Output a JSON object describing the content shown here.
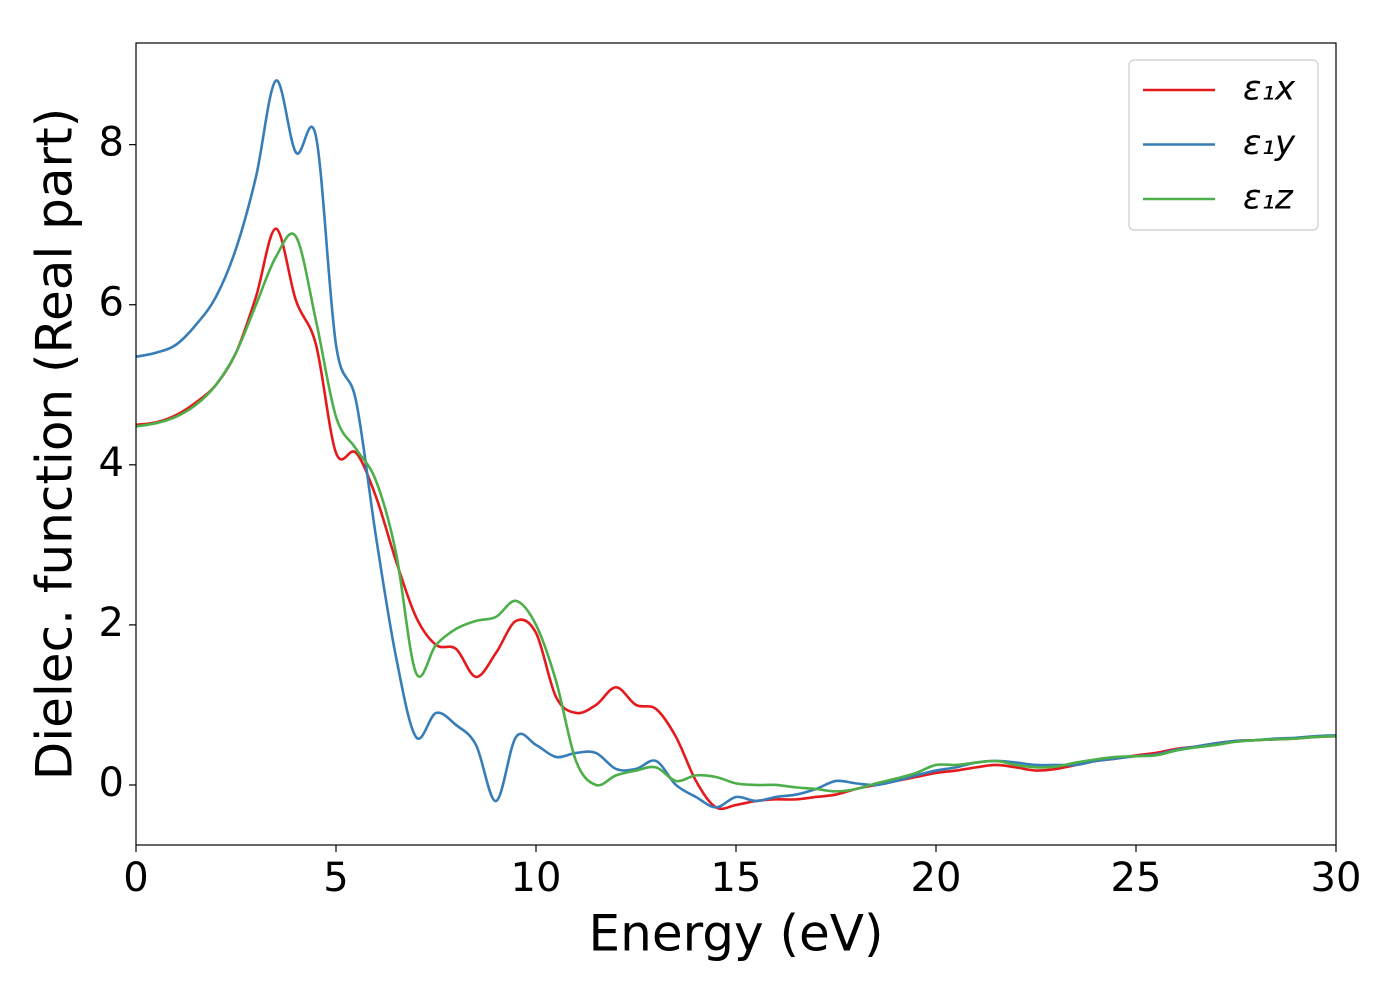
{
  "chart_data": {
    "type": "line",
    "xlabel": "Energy (eV)",
    "ylabel": "Dielec. function (Real part)",
    "x": [
      0,
      0.5,
      1,
      1.5,
      2,
      2.5,
      3,
      3.5,
      4,
      4.5,
      5,
      5.5,
      6,
      6.5,
      7,
      7.5,
      8,
      8.5,
      9,
      9.5,
      10,
      10.5,
      11,
      11.5,
      12,
      12.5,
      13,
      13.5,
      14,
      14.5,
      15,
      15.5,
      16,
      16.5,
      17,
      17.5,
      18,
      18.5,
      19,
      19.5,
      20,
      20.5,
      21,
      21.5,
      22,
      22.5,
      23,
      23.5,
      24,
      24.5,
      25,
      25.5,
      26,
      26.5,
      27,
      27.5,
      28,
      28.5,
      29,
      29.5,
      30
    ],
    "series": [
      {
        "name": "ε₁x",
        "color": "#e41a1c",
        "values": [
          4.5,
          4.53,
          4.62,
          4.78,
          5.0,
          5.4,
          6.1,
          6.95,
          6.05,
          5.5,
          4.15,
          4.15,
          3.6,
          2.8,
          2.1,
          1.75,
          1.7,
          1.35,
          1.65,
          2.05,
          1.9,
          1.1,
          0.9,
          1.0,
          1.22,
          1.0,
          0.95,
          0.6,
          0.05,
          -0.28,
          -0.25,
          -0.2,
          -0.18,
          -0.18,
          -0.15,
          -0.12,
          -0.05,
          0.0,
          0.05,
          0.1,
          0.15,
          0.18,
          0.22,
          0.25,
          0.22,
          0.18,
          0.2,
          0.25,
          0.3,
          0.33,
          0.37,
          0.4,
          0.45,
          0.48,
          0.52,
          0.55,
          0.56,
          0.57,
          0.58,
          0.6,
          0.61
        ]
      },
      {
        "name": "ε₁y",
        "color": "#377eb8",
        "values": [
          5.35,
          5.4,
          5.5,
          5.75,
          6.1,
          6.7,
          7.6,
          8.8,
          7.9,
          8.1,
          5.5,
          4.8,
          3.1,
          1.6,
          0.6,
          0.9,
          0.75,
          0.5,
          -0.2,
          0.6,
          0.5,
          0.35,
          0.4,
          0.4,
          0.2,
          0.2,
          0.3,
          0.0,
          -0.15,
          -0.28,
          -0.15,
          -0.2,
          -0.15,
          -0.12,
          -0.05,
          0.05,
          0.02,
          0.0,
          0.05,
          0.12,
          0.18,
          0.22,
          0.28,
          0.3,
          0.28,
          0.25,
          0.25,
          0.25,
          0.3,
          0.33,
          0.36,
          0.38,
          0.44,
          0.48,
          0.52,
          0.55,
          0.56,
          0.58,
          0.59,
          0.61,
          0.62
        ]
      },
      {
        "name": "ε₁z",
        "color": "#4daf4a",
        "values": [
          4.48,
          4.52,
          4.6,
          4.75,
          5.0,
          5.4,
          6.0,
          6.6,
          6.85,
          5.8,
          4.6,
          4.2,
          3.8,
          2.9,
          1.4,
          1.75,
          1.95,
          2.05,
          2.1,
          2.3,
          2.0,
          1.3,
          0.3,
          0.0,
          0.12,
          0.18,
          0.22,
          0.05,
          0.12,
          0.1,
          0.02,
          0.0,
          0.0,
          -0.03,
          -0.05,
          -0.08,
          -0.05,
          0.02,
          0.08,
          0.15,
          0.25,
          0.25,
          0.28,
          0.3,
          0.25,
          0.22,
          0.23,
          0.28,
          0.32,
          0.35,
          0.36,
          0.37,
          0.43,
          0.47,
          0.5,
          0.54,
          0.56,
          0.57,
          0.58,
          0.6,
          0.61
        ]
      }
    ],
    "xlim": [
      0,
      30
    ],
    "xticks": [
      0,
      5,
      10,
      15,
      20,
      25,
      30
    ],
    "ylim": [
      -0.75,
      9.27
    ],
    "yticks": [
      0,
      2,
      4,
      6,
      8
    ],
    "grid": false,
    "legend": "upper right"
  }
}
